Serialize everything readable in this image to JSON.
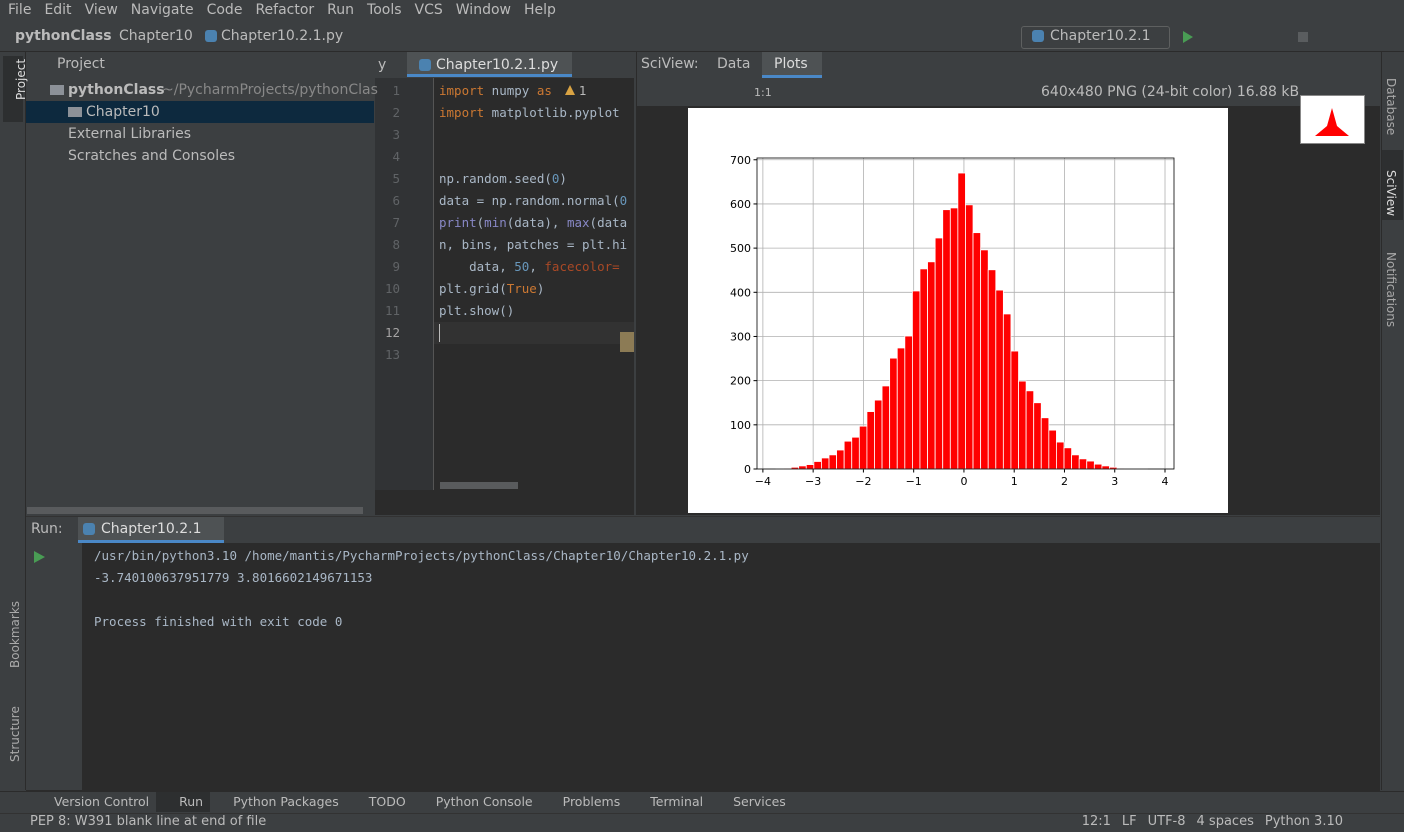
{
  "menu": [
    "File",
    "Edit",
    "View",
    "Navigate",
    "Code",
    "Refactor",
    "Run",
    "Tools",
    "VCS",
    "Window",
    "Help"
  ],
  "breadcrumb": [
    "pythonClass",
    "Chapter10",
    "Chapter10.2.1.py"
  ],
  "run_config": "Chapter10.2.1",
  "side_tabs": {
    "left": [
      "Project",
      "Bookmarks",
      "Structure"
    ],
    "right": [
      "Database",
      "SciView",
      "Notifications"
    ]
  },
  "project": {
    "title": "Project",
    "tree": [
      {
        "label": "pythonClass",
        "path": "~/PycharmProjects/pythonClas"
      },
      {
        "label": "Chapter10"
      },
      {
        "label": "External Libraries"
      },
      {
        "label": "Scratches and Consoles"
      }
    ]
  },
  "editor": {
    "hidden_tab": "y",
    "tab": "Chapter10.2.1.py",
    "warnings": 1,
    "line_numbers": [
      1,
      2,
      3,
      4,
      5,
      6,
      7,
      8,
      9,
      10,
      11,
      12,
      13
    ],
    "code": [
      "import numpy as",
      "import matplotlib.pyplot",
      null,
      null,
      "np.random.seed(0)",
      "data = np.random.normal(0",
      "print(min(data), max(data",
      "n, bins, patches = plt.hi",
      "    data, 50, facecolor=",
      "plt.grid(True)",
      "plt.show()",
      null,
      null
    ]
  },
  "sciview": {
    "title": "SciView:",
    "tabs": [
      "Data",
      "Plots"
    ],
    "zoom_label": "1:1",
    "image_info": "640x480 PNG (24-bit color) 16.88 kB"
  },
  "chart_data": {
    "type": "histogram",
    "color": "#ff0000",
    "edgecolor": "#ffffff",
    "bins": [
      -3.74,
      -3.589,
      -3.438,
      -3.288,
      -3.137,
      -2.986,
      -2.835,
      -2.684,
      -2.534,
      -2.383,
      -2.232,
      -2.081,
      -1.93,
      -1.78,
      -1.629,
      -1.478,
      -1.327,
      -1.176,
      -1.025,
      -0.875,
      -0.724,
      -0.573,
      -0.422,
      -0.271,
      -0.121,
      0.03,
      0.181,
      0.332,
      0.483,
      0.634,
      0.784,
      0.935,
      1.086,
      1.237,
      1.388,
      1.538,
      1.689,
      1.84,
      1.991,
      2.142,
      2.293,
      2.443,
      2.594,
      2.745,
      2.896,
      3.047,
      3.197,
      3.348,
      3.499,
      3.65,
      3.802
    ],
    "values": [
      1,
      2,
      4,
      7,
      10,
      17,
      25,
      32,
      43,
      63,
      72,
      97,
      130,
      156,
      188,
      251,
      274,
      301,
      403,
      453,
      469,
      523,
      587,
      591,
      670,
      598,
      535,
      496,
      451,
      405,
      351,
      267,
      199,
      177,
      150,
      116,
      88,
      61,
      48,
      32,
      23,
      18,
      11,
      7,
      4,
      2,
      1,
      1,
      1,
      0
    ],
    "xlim": [
      -4.117,
      4.179
    ],
    "ylim": [
      0,
      704
    ],
    "xticks": [
      {
        "value": -4,
        "label": "−4"
      },
      {
        "value": -3,
        "label": "−3"
      },
      {
        "value": -2,
        "label": "−2"
      },
      {
        "value": -1,
        "label": "−1"
      },
      0,
      1,
      2,
      3,
      4
    ],
    "yticks": [
      0,
      100,
      200,
      300,
      400,
      500,
      600,
      700
    ],
    "grid": true
  },
  "run": {
    "title": "Run:",
    "tab": "Chapter10.2.1",
    "output": [
      "/usr/bin/python3.10 /home/mantis/PycharmProjects/pythonClass/Chapter10/Chapter10.2.1.py",
      "-3.740100637951779 3.8016602149671153",
      null,
      "Process finished with exit code 0"
    ]
  },
  "tool_windows": [
    "Version Control",
    "Run",
    "Python Packages",
    "TODO",
    "Python Console",
    "Problems",
    "Terminal",
    "Services"
  ],
  "status": {
    "message": "PEP 8: W391 blank line at end of file",
    "items": [
      "12:1",
      "LF",
      "UTF-8",
      "4 spaces",
      "Python 3.10"
    ]
  }
}
